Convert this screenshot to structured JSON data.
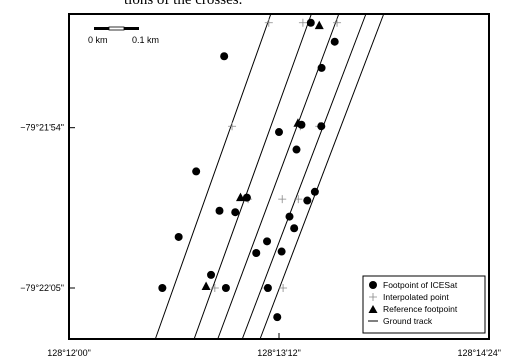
{
  "caption": "tions of the crosses.",
  "chart_data": {
    "type": "scatter",
    "title": "",
    "xlabel": "",
    "ylabel": "",
    "x_axis": {
      "ticks": [
        {
          "value": 0,
          "label": "128°12'00\""
        },
        {
          "value": 72,
          "label": "128°13'12\""
        },
        {
          "value": 144,
          "label": "128°14'24\""
        }
      ],
      "range": [
        0,
        144
      ],
      "unit": "arcseconds east of 128°12'00\""
    },
    "y_axis": {
      "ticks": [
        {
          "value": 54,
          "label": "−79°21'54\""
        },
        {
          "value": 65,
          "label": "−79°22'05\""
        }
      ],
      "range": [
        46.2,
        68.5
      ],
      "unit": "arcseconds south of 79°21'00\""
    },
    "scale_bar": {
      "label_left": "0 km",
      "label_right": "0.1 km"
    },
    "legend": {
      "position": "bottom-right",
      "entries": [
        {
          "symbol": "circle",
          "label": "Footpoint of ICESat"
        },
        {
          "symbol": "plus",
          "label": "Interpolated point"
        },
        {
          "symbol": "triangle",
          "label": "Reference footpoint"
        },
        {
          "symbol": "line",
          "label": "Ground track"
        }
      ]
    },
    "tracks": [
      {
        "start": [
          29.6,
          68.5
        ],
        "end": [
          69.2,
          46.2
        ]
      },
      {
        "start": [
          42.9,
          68.5
        ],
        "end": [
          83.1,
          46.2
        ]
      },
      {
        "start": [
          51.0,
          68.5
        ],
        "end": [
          92.5,
          46.2
        ]
      },
      {
        "start": [
          59.4,
          68.5
        ],
        "end": [
          101.8,
          46.2
        ]
      },
      {
        "start": [
          65.5,
          68.5
        ],
        "end": [
          107.9,
          46.2
        ]
      }
    ],
    "footpoints": [
      [
        32.0,
        65.0
      ],
      [
        37.6,
        61.5
      ],
      [
        43.6,
        57.0
      ],
      [
        53.2,
        49.1
      ],
      [
        48.7,
        64.1
      ],
      [
        53.8,
        65.0
      ],
      [
        51.6,
        59.7
      ],
      [
        64.2,
        62.6
      ],
      [
        57.0,
        59.8
      ],
      [
        61.0,
        58.8
      ],
      [
        67.9,
        61.8
      ],
      [
        72.9,
        62.5
      ],
      [
        68.2,
        65.0
      ],
      [
        72.0,
        54.3
      ],
      [
        78.0,
        55.5
      ],
      [
        82.9,
        46.8
      ],
      [
        79.7,
        53.8
      ],
      [
        86.6,
        49.9
      ],
      [
        86.5,
        53.9
      ],
      [
        84.3,
        58.4
      ],
      [
        91.1,
        48.1
      ],
      [
        75.6,
        60.1
      ],
      [
        81.7,
        59.0
      ],
      [
        77.2,
        60.9
      ],
      [
        71.4,
        67.0
      ]
    ],
    "interpolated": [
      [
        68.5,
        46.8
      ],
      [
        80.2,
        46.8
      ],
      [
        91.9,
        46.8
      ],
      [
        55.9,
        53.9
      ],
      [
        79.3,
        53.9
      ],
      [
        85.8,
        53.9
      ],
      [
        61.4,
        58.9
      ],
      [
        73.1,
        58.9
      ],
      [
        78.6,
        58.9
      ],
      [
        32.1,
        65.0
      ],
      [
        50.0,
        65.0
      ],
      [
        67.6,
        65.0
      ],
      [
        73.4,
        65.0
      ]
    ],
    "reference": [
      [
        85.8,
        47.0
      ],
      [
        78.5,
        53.7
      ],
      [
        58.8,
        58.8
      ],
      [
        47.0,
        64.9
      ]
    ]
  }
}
